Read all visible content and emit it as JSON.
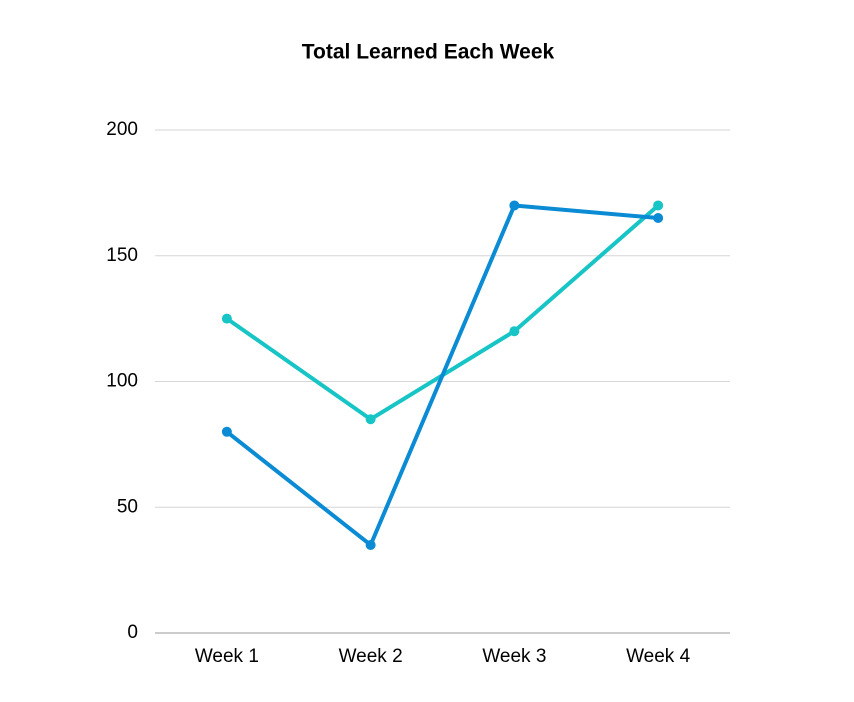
{
  "chart_data": {
    "type": "line",
    "title": "Total Learned Each Week",
    "categories": [
      "Week 1",
      "Week 2",
      "Week 3",
      "Week 4"
    ],
    "series": [
      {
        "color": "#17c4c6",
        "values": [
          125,
          85,
          120,
          170
        ]
      },
      {
        "color": "#0a8bd4",
        "values": [
          80,
          35,
          170,
          165
        ]
      }
    ],
    "ylim": [
      0,
      200
    ],
    "yticks": [
      0,
      50,
      100,
      150,
      200
    ],
    "grid": true
  }
}
